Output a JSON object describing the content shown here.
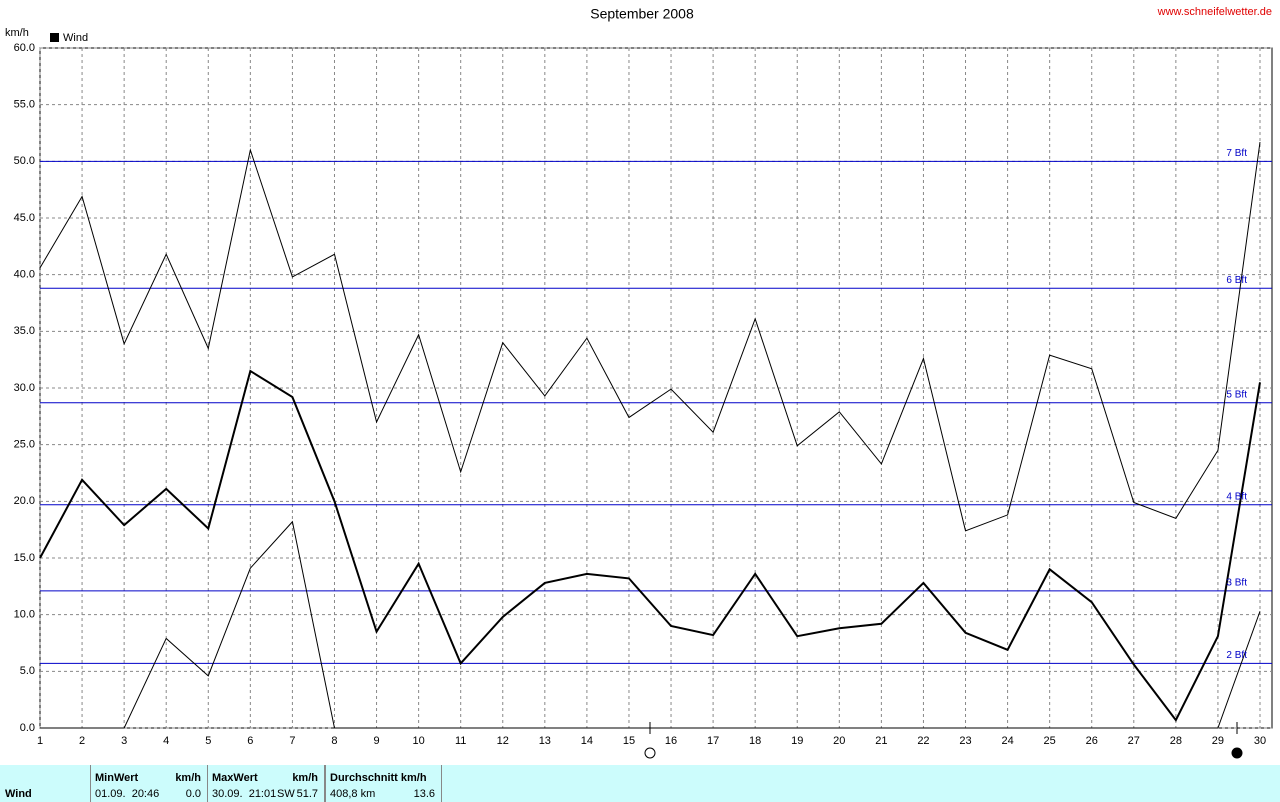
{
  "chart_data": {
    "type": "line",
    "title": "September 2008",
    "source": "www.schneifelwetter.de",
    "y_unit": "km/h",
    "legend": "Wind",
    "x": [
      1,
      2,
      3,
      4,
      5,
      6,
      7,
      8,
      9,
      10,
      11,
      12,
      13,
      14,
      15,
      16,
      17,
      18,
      19,
      20,
      21,
      22,
      23,
      24,
      25,
      26,
      27,
      28,
      29,
      30
    ],
    "xlim": [
      1,
      30
    ],
    "xticks": [
      1,
      2,
      3,
      4,
      5,
      6,
      7,
      8,
      9,
      10,
      11,
      12,
      13,
      14,
      15,
      16,
      17,
      18,
      19,
      20,
      21,
      22,
      23,
      24,
      25,
      26,
      27,
      28,
      29,
      30
    ],
    "ylim": [
      0,
      60
    ],
    "yticks": [
      {
        "value": 0,
        "label": "0.0"
      },
      {
        "value": 5,
        "label": "5.0"
      },
      {
        "value": 10,
        "label": "10.0"
      },
      {
        "value": 15,
        "label": "15.0"
      },
      {
        "value": 20,
        "label": "20.0"
      },
      {
        "value": 25,
        "label": "25.0"
      },
      {
        "value": 30,
        "label": "30.0"
      },
      {
        "value": 35,
        "label": "35.0"
      },
      {
        "value": 40,
        "label": "40.0"
      },
      {
        "value": 45,
        "label": "45.0"
      },
      {
        "value": 50,
        "label": "50.0"
      },
      {
        "value": 55,
        "label": "55.0"
      },
      {
        "value": 60,
        "label": "60.0"
      }
    ],
    "grid": true,
    "series": [
      {
        "color": "#000000",
        "values": [
          40.6,
          46.9,
          33.9,
          41.8,
          33.5,
          51.0,
          39.8,
          41.8,
          27.0,
          34.7,
          22.6,
          34.0,
          29.3,
          34.4,
          27.4,
          29.9,
          26.1,
          36.1,
          24.9,
          27.9,
          23.3,
          32.6,
          17.4,
          18.8,
          32.9,
          31.7,
          19.9,
          18.5,
          24.5,
          51.7
        ]
      },
      {
        "color": "#000000",
        "values": [
          15.0,
          21.9,
          17.9,
          21.1,
          17.6,
          31.5,
          29.2,
          20.0,
          8.5,
          14.5,
          5.7,
          9.8,
          12.8,
          13.6,
          13.2,
          9.0,
          8.2,
          13.6,
          8.1,
          8.8,
          9.2,
          12.8,
          8.4,
          6.9,
          14.0,
          11.1,
          5.6,
          0.7,
          8.1,
          30.5
        ]
      },
      {
        "color": "#000000",
        "values": [
          0,
          0,
          0,
          7.9,
          4.6,
          14.1,
          18.2,
          0,
          0,
          0,
          0,
          0,
          0,
          0,
          0,
          0,
          0,
          0,
          0,
          0,
          0,
          0,
          0,
          0,
          0,
          0,
          0,
          0,
          0,
          10.3
        ]
      }
    ],
    "reference_color": "#0000c8",
    "reference_lines": [
      {
        "value": 50,
        "label": "7 Bft"
      },
      {
        "value": 38.8,
        "label": "6 Bft"
      },
      {
        "value": 28.7,
        "label": "5 Bft"
      },
      {
        "value": 19.7,
        "label": "4 Bft"
      },
      {
        "value": 12.1,
        "label": "3 Bft"
      },
      {
        "value": 5.7,
        "label": "2 Bft"
      }
    ]
  },
  "table": {
    "row_label": "Wind",
    "min": {
      "header": "MinWert",
      "unit": "km/h",
      "time": "01.09.  20:46",
      "value": "0.0"
    },
    "max": {
      "header": "MaxWert",
      "unit": "km/h",
      "time": "30.09.  21:01",
      "direction": "SW",
      "value": "51.7"
    },
    "avg": {
      "header": "Durchschnitt km/h",
      "distance": "408,8 km",
      "value": "13.6"
    }
  }
}
